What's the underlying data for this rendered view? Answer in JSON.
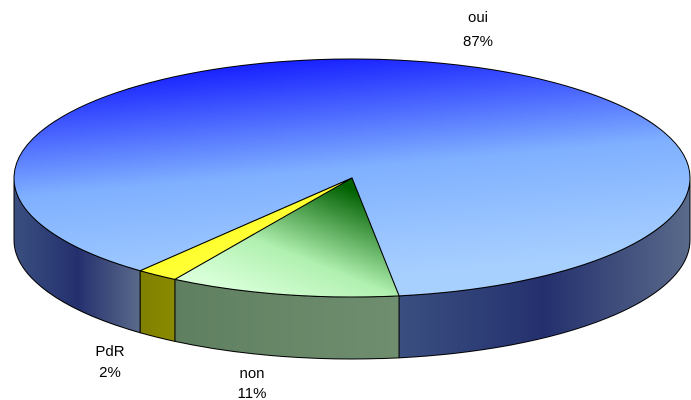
{
  "chart_data": {
    "type": "pie",
    "categories": [
      "oui",
      "non",
      "PdR"
    ],
    "values": [
      87,
      11,
      2
    ],
    "value_labels": [
      "87%",
      "11%",
      "2%"
    ],
    "colors": [
      "#2040ff",
      "#40a040",
      "#ffff00"
    ]
  }
}
